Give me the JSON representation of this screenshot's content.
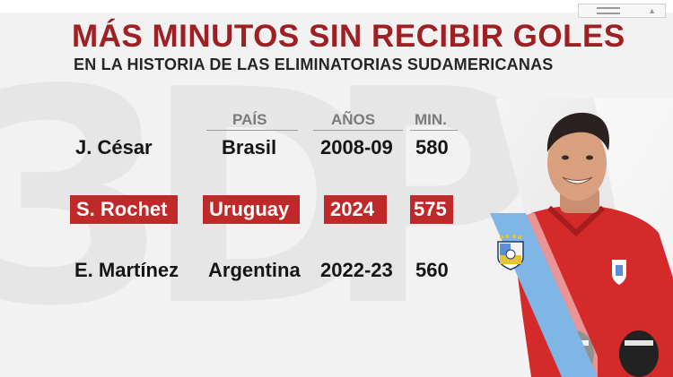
{
  "graphic": {
    "title": "MÁS MINUTOS SIN RECIBIR GOLES",
    "subtitle": "EN LA HISTORIA DE LAS ELIMINATORIAS SUDAMERICANAS"
  },
  "table": {
    "headers": {
      "country": "PAÍS",
      "years": "AÑOS",
      "minutes": "MIN."
    },
    "rows": [
      {
        "player": "J. César",
        "country": "Brasil",
        "years": "2008-09",
        "minutes": "580",
        "highlighted": false
      },
      {
        "player": "S. Rochet",
        "country": "Uruguay",
        "years": "2024",
        "minutes": "575",
        "highlighted": true
      },
      {
        "player": "E. Martínez",
        "country": "Argentina",
        "years": "2022-23",
        "minutes": "560",
        "highlighted": false
      }
    ]
  },
  "colors": {
    "title": "#9e2023",
    "highlight": "#c0282a",
    "uruguay_sky_blue": "#7fb6e6",
    "jersey_red": "#d42a2a"
  },
  "icons": [
    "uruguay-crest-icon",
    "window-menu-icon",
    "dropdown-triangle-icon"
  ]
}
